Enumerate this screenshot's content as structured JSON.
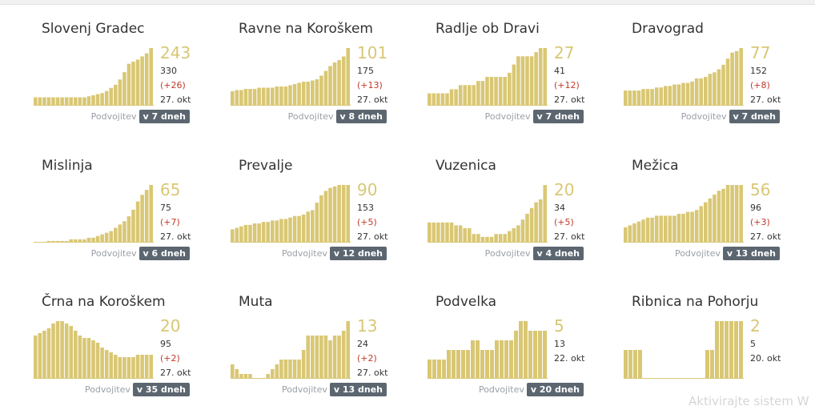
{
  "doubling_label": "Podvojitev",
  "bar_color": "#d9c774",
  "watermark": "Aktivirajte sistem W",
  "chart_data": [
    {
      "type": "bar",
      "title": "Slovenj Gradec",
      "value": "243",
      "total": "330",
      "delta": "(+26)",
      "date": "27. okt",
      "doubling": "v 7 dneh",
      "values": [
        8,
        8,
        8,
        8,
        8,
        8,
        8,
        8,
        8,
        8,
        8,
        8,
        9,
        10,
        11,
        12,
        14,
        17,
        20,
        25,
        32,
        40,
        42,
        44,
        47,
        50,
        55
      ]
    },
    {
      "type": "bar",
      "title": "Ravne na Koroškem",
      "value": "101",
      "total": "175",
      "delta": "(+13)",
      "date": "27. okt",
      "doubling": "v 8 dneh",
      "values": [
        12,
        13,
        13,
        14,
        14,
        14,
        15,
        15,
        15,
        15,
        16,
        16,
        16,
        17,
        18,
        19,
        20,
        20,
        21,
        22,
        25,
        29,
        33,
        36,
        38,
        41,
        48
      ]
    },
    {
      "type": "bar",
      "title": "Radlje ob Dravi",
      "value": "27",
      "total": "41",
      "delta": "(+12)",
      "date": "27. okt",
      "doubling": "v 7 dneh",
      "values": [
        3,
        3,
        3,
        3,
        3,
        4,
        4,
        5,
        5,
        5,
        5,
        6,
        6,
        7,
        7,
        7,
        7,
        7,
        8,
        10,
        12,
        12,
        12,
        12,
        13,
        14,
        14
      ]
    },
    {
      "type": "bar",
      "title": "Dravograd",
      "value": "77",
      "total": "152",
      "delta": "(+8)",
      "date": "27. okt",
      "doubling": "v 7 dneh",
      "values": [
        10,
        10,
        10,
        10,
        11,
        11,
        11,
        12,
        12,
        13,
        13,
        14,
        14,
        15,
        15,
        16,
        18,
        18,
        19,
        21,
        22,
        24,
        27,
        31,
        35,
        36,
        38
      ]
    },
    {
      "type": "bar",
      "title": "Mislinja",
      "value": "65",
      "total": "75",
      "delta": "(+7)",
      "date": "27. okt",
      "doubling": "v 6 dneh",
      "values": [
        0,
        0,
        0,
        1,
        1,
        1,
        1,
        1,
        2,
        2,
        2,
        2,
        3,
        3,
        4,
        5,
        6,
        7,
        9,
        11,
        13,
        16,
        20,
        25,
        29,
        32,
        35
      ]
    },
    {
      "type": "bar",
      "title": "Prevalje",
      "value": "90",
      "total": "153",
      "delta": "(+5)",
      "date": "27. okt",
      "doubling": "v 12 dneh",
      "values": [
        9,
        10,
        11,
        12,
        12,
        13,
        13,
        14,
        14,
        15,
        15,
        16,
        16,
        17,
        18,
        18,
        19,
        21,
        22,
        27,
        32,
        35,
        37,
        38,
        39,
        39,
        39
      ]
    },
    {
      "type": "bar",
      "title": "Vuzenica",
      "value": "20",
      "total": "34",
      "delta": "(+5)",
      "date": "27. okt",
      "doubling": "v 4 dneh",
      "values": [
        7,
        7,
        7,
        7,
        7,
        7,
        6,
        6,
        5,
        5,
        3,
        3,
        2,
        2,
        2,
        3,
        3,
        3,
        4,
        5,
        6,
        8,
        10,
        12,
        14,
        15,
        20
      ]
    },
    {
      "type": "bar",
      "title": "Mežica",
      "value": "56",
      "total": "96",
      "delta": "(+3)",
      "date": "27. okt",
      "doubling": "v 13 dneh",
      "values": [
        8,
        9,
        10,
        11,
        12,
        13,
        13,
        14,
        14,
        14,
        14,
        14,
        15,
        15,
        16,
        16,
        17,
        19,
        21,
        23,
        25,
        27,
        28,
        30,
        30,
        30,
        30
      ]
    },
    {
      "type": "bar",
      "title": "Črna na Koroškem",
      "value": "20",
      "total": "95",
      "delta": "(+2)",
      "date": "27. okt",
      "doubling": "v 35 dneh",
      "values": [
        18,
        19,
        20,
        21,
        23,
        24,
        24,
        23,
        22,
        20,
        18,
        17,
        17,
        16,
        15,
        13,
        12,
        11,
        10,
        9,
        9,
        9,
        9,
        10,
        10,
        10,
        10
      ]
    },
    {
      "type": "bar",
      "title": "Muta",
      "value": "13",
      "total": "24",
      "delta": "(+2)",
      "date": "27. okt",
      "doubling": "v 13 dneh",
      "values": [
        3,
        2,
        1,
        1,
        1,
        0,
        0,
        0,
        1,
        2,
        3,
        4,
        4,
        4,
        4,
        4,
        6,
        9,
        9,
        9,
        9,
        9,
        8,
        9,
        9,
        10,
        12
      ]
    },
    {
      "type": "bar",
      "title": "Podvelka",
      "value": "5",
      "total": "13",
      "delta": "",
      "date": "22. okt",
      "doubling": "v 20 dneh",
      "values": [
        2,
        2,
        2,
        2,
        3,
        3,
        3,
        3,
        3,
        4,
        4,
        3,
        3,
        3,
        4,
        4,
        4,
        4,
        5,
        6,
        6,
        5,
        5,
        5,
        5
      ]
    },
    {
      "type": "bar",
      "title": "Ribnica na Pohorju",
      "value": "2",
      "total": "5",
      "delta": "",
      "date": "20. okt",
      "doubling": "",
      "values": [
        1,
        1,
        1,
        1,
        0,
        0,
        0,
        0,
        0,
        0,
        0,
        0,
        0,
        0,
        0,
        0,
        0,
        1,
        1,
        2,
        2,
        2,
        2,
        2,
        2
      ]
    }
  ]
}
